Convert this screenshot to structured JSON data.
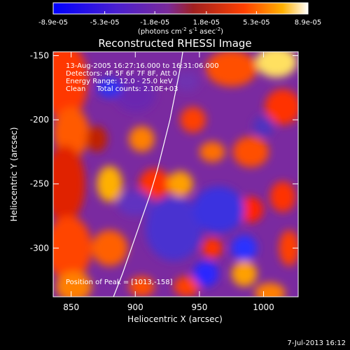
{
  "chart_data": {
    "type": "heatmap",
    "title": "Reconstructed RHESSI Image",
    "xlabel": "Heliocentric X (arcsec)",
    "ylabel": "Heliocentric Y (arcsec)",
    "xlim": [
      836,
      1027
    ],
    "ylim": [
      -338,
      -147
    ],
    "x_ticks": [
      850,
      900,
      950,
      1000
    ],
    "y_ticks": [
      -150,
      -200,
      -250,
      -300
    ],
    "colorbar": {
      "units_label": "(photons cm",
      "ticks": [
        "-8.9e-05",
        "-5.3e-05",
        "-1.8e-05",
        "1.8e-05",
        "5.3e-05",
        "8.9e-05"
      ],
      "range": [
        -8.9e-05,
        8.9e-05
      ]
    },
    "info_lines": [
      "13-Aug-2005 16:27:16.000 to 16:31:06.000",
      "Detectors: 4F 5F 6F 7F 8F, Att 0",
      "Energy Range: 12.0 - 25.0 keV",
      "Clean     Total counts: 2.10E+03"
    ],
    "peak_label": "Position of Peak = [1013,-158]",
    "peak": [
      1013,
      -158
    ],
    "limb_curve": [
      [
        883,
        -338
      ],
      [
        890,
        -320
      ],
      [
        897,
        -300
      ],
      [
        904,
        -280
      ],
      [
        911,
        -260
      ],
      [
        917,
        -240
      ],
      [
        922,
        -220
      ],
      [
        927,
        -200
      ],
      [
        931,
        -180
      ],
      [
        935,
        -160
      ],
      [
        937,
        -147
      ]
    ],
    "colors": {
      "background": "#000000",
      "neg": "#2020ff",
      "mid": "#8030c0",
      "pos": "#ff3000",
      "max": "#ffff80"
    }
  },
  "footer": {
    "date": "7-Jul-2013 16:12"
  }
}
